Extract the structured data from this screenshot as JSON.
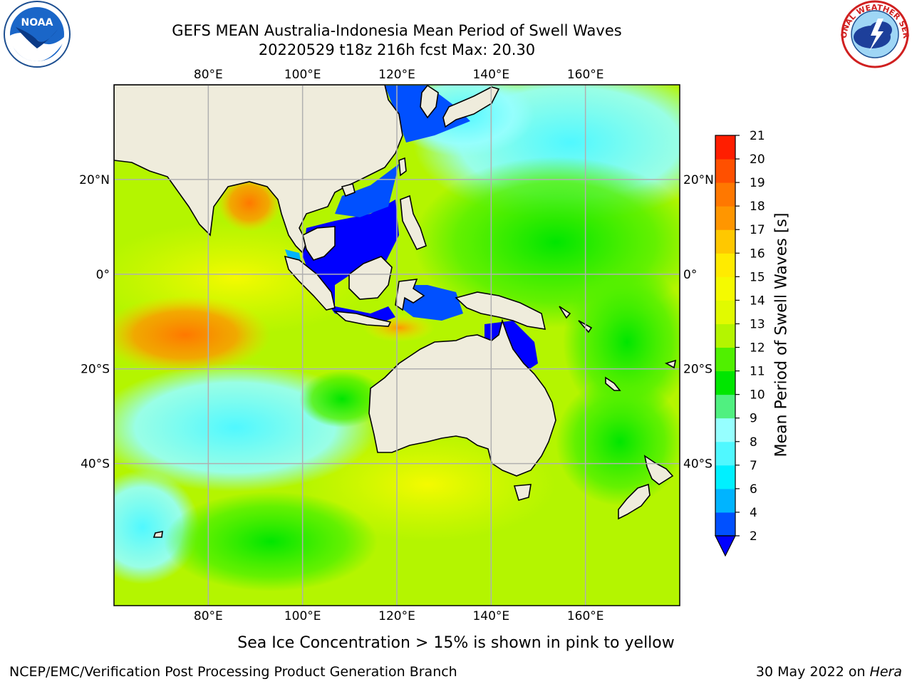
{
  "title_line1": "GEFS MEAN Australia-Indonesia Mean Period of Swell Waves",
  "title_line2": "20220529 t18z 216h fcst   Max: 20.30",
  "caption": "Sea Ice Concentration > 15% is shown in pink to yellow",
  "credit": "NCEP/EMC/Verification Post Processing Product Generation Branch",
  "stamp_date": "30 May 2022 on ",
  "stamp_host": "Hera",
  "logos": {
    "left": "noaa-logo",
    "right": "nws-logo"
  },
  "map": {
    "lon_range": [
      60,
      180
    ],
    "lat_range": [
      -70,
      40
    ],
    "lon_ticks": [
      "80°E",
      "100°E",
      "120°E",
      "140°E",
      "160°E"
    ],
    "lat_ticks": [
      "20°N",
      "0°",
      "20°S",
      "40°S"
    ],
    "land_color": "#efecdc",
    "grid_color": "#b0b0b0"
  },
  "colorbar": {
    "label": "Mean Period of Swell Waves [s]",
    "levels": [
      2,
      4,
      6,
      7,
      8,
      9,
      10,
      11,
      12,
      13,
      14,
      15,
      16,
      17,
      18,
      19,
      20,
      21
    ],
    "level_labels": [
      "2",
      "4",
      "6",
      "7",
      "8",
      "9",
      "10",
      "11",
      "12",
      "13",
      "14",
      "15",
      "16",
      "17",
      "18",
      "19",
      "20",
      "21"
    ],
    "colors": [
      "#0050ff",
      "#00b4ff",
      "#00f0ff",
      "#50f8ff",
      "#96ffff",
      "#50f080",
      "#00e600",
      "#50f000",
      "#b4f500",
      "#e1fa00",
      "#f5fa00",
      "#ffeb00",
      "#ffc800",
      "#ff9600",
      "#ff7800",
      "#ff5000",
      "#ff1e00"
    ],
    "under_color": "#0000ff"
  }
}
